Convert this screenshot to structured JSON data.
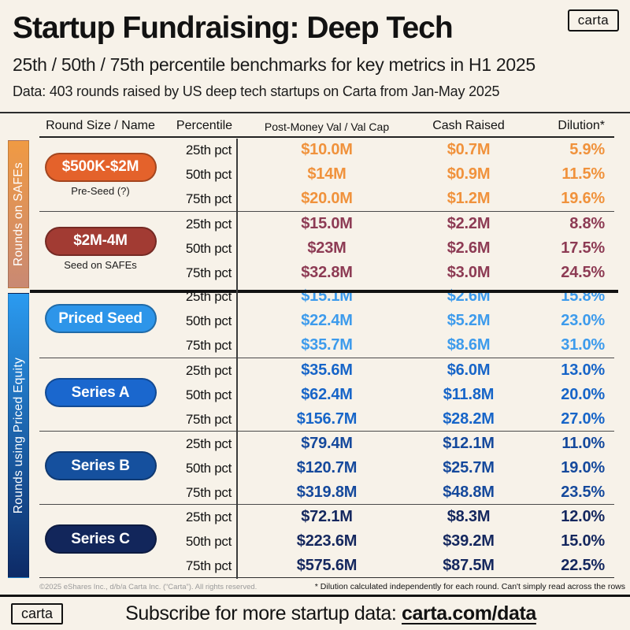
{
  "brand": "carta",
  "header": {
    "title": "Startup Fundraising: Deep Tech",
    "subtitle": "25th / 50th / 75th percentile benchmarks for key metrics in H1 2025",
    "data_note": "Data: 403 rounds raised by US deep tech startups on Carta from Jan-May 2025"
  },
  "colors": {
    "background": "#F7F2E9",
    "text": "#121212"
  },
  "chart_data": {
    "type": "table",
    "columns": [
      "Round Size / Name",
      "Percentile",
      "Post-Money Val / Val Cap",
      "Cash Raised",
      "Dilution*"
    ],
    "side_sections": [
      {
        "label": "Rounds on SAFEs",
        "gradient_top": "#F09A43",
        "gradient_bottom": "#C98973"
      },
      {
        "label": "Rounds using Priced Equity",
        "gradient_top": "#2B9BF0",
        "gradient_bottom": "#0D2A66"
      }
    ],
    "groups": [
      {
        "name": "$500K-$2M",
        "sublabel": "Pre-Seed (?)",
        "section": "Rounds on SAFEs",
        "pill_color": "#E4622B",
        "value_color": "#F0923C",
        "rows": [
          {
            "percentile": "25th pct",
            "post_money": "$10.0M",
            "cash_raised": "$0.7M",
            "dilution": "5.9%"
          },
          {
            "percentile": "50th pct",
            "post_money": "$14M",
            "cash_raised": "$0.9M",
            "dilution": "11.5%"
          },
          {
            "percentile": "75th pct",
            "post_money": "$20.0M",
            "cash_raised": "$1.2M",
            "dilution": "19.6%"
          }
        ]
      },
      {
        "name": "$2M-4M",
        "sublabel": "Seed on SAFEs",
        "section": "Rounds on SAFEs",
        "pill_color": "#A23B33",
        "value_color": "#8D3B54",
        "rows": [
          {
            "percentile": "25th pct",
            "post_money": "$15.0M",
            "cash_raised": "$2.2M",
            "dilution": "8.8%"
          },
          {
            "percentile": "50th pct",
            "post_money": "$23M",
            "cash_raised": "$2.6M",
            "dilution": "17.5%"
          },
          {
            "percentile": "75th pct",
            "post_money": "$32.8M",
            "cash_raised": "$3.0M",
            "dilution": "24.5%"
          }
        ]
      },
      {
        "name": "Priced Seed",
        "sublabel": "",
        "section": "Rounds using Priced Equity",
        "pill_color": "#2D95E9",
        "value_color": "#3D9BEC",
        "rows": [
          {
            "percentile": "25th pct",
            "post_money": "$15.1M",
            "cash_raised": "$2.6M",
            "dilution": "15.8%"
          },
          {
            "percentile": "50th pct",
            "post_money": "$22.4M",
            "cash_raised": "$5.2M",
            "dilution": "23.0%"
          },
          {
            "percentile": "75th pct",
            "post_money": "$35.7M",
            "cash_raised": "$8.6M",
            "dilution": "31.0%"
          }
        ]
      },
      {
        "name": "Series A",
        "sublabel": "",
        "section": "Rounds using Priced Equity",
        "pill_color": "#1A67CE",
        "value_color": "#1765C8",
        "rows": [
          {
            "percentile": "25th pct",
            "post_money": "$35.6M",
            "cash_raised": "$6.0M",
            "dilution": "13.0%"
          },
          {
            "percentile": "50th pct",
            "post_money": "$62.4M",
            "cash_raised": "$11.8M",
            "dilution": "20.0%"
          },
          {
            "percentile": "75th pct",
            "post_money": "$156.7M",
            "cash_raised": "$28.2M",
            "dilution": "27.0%"
          }
        ]
      },
      {
        "name": "Series B",
        "sublabel": "",
        "section": "Rounds using Priced Equity",
        "pill_color": "#15509E",
        "value_color": "#15499C",
        "rows": [
          {
            "percentile": "25th pct",
            "post_money": "$79.4M",
            "cash_raised": "$12.1M",
            "dilution": "11.0%"
          },
          {
            "percentile": "50th pct",
            "post_money": "$120.7M",
            "cash_raised": "$25.7M",
            "dilution": "19.0%"
          },
          {
            "percentile": "75th pct",
            "post_money": "$319.8M",
            "cash_raised": "$48.8M",
            "dilution": "23.5%"
          }
        ]
      },
      {
        "name": "Series C",
        "sublabel": "",
        "section": "Rounds using Priced Equity",
        "pill_color": "#12265B",
        "value_color": "#14275E",
        "rows": [
          {
            "percentile": "25th pct",
            "post_money": "$72.1M",
            "cash_raised": "$8.3M",
            "dilution": "12.0%"
          },
          {
            "percentile": "50th pct",
            "post_money": "$223.6M",
            "cash_raised": "$39.2M",
            "dilution": "15.0%"
          },
          {
            "percentile": "75th pct",
            "post_money": "$575.6M",
            "cash_raised": "$87.5M",
            "dilution": "22.5%"
          }
        ]
      }
    ]
  },
  "footer": {
    "copyright": "©2025 eShares Inc., d/b/a Carta Inc. (“Carta”). All rights reserved.",
    "dilution_note": "* Dilution calculated independently for each round. Can't simply read across the rows"
  },
  "subscribe": {
    "text": "Subscribe for more startup data:",
    "link": "carta.com/data"
  }
}
